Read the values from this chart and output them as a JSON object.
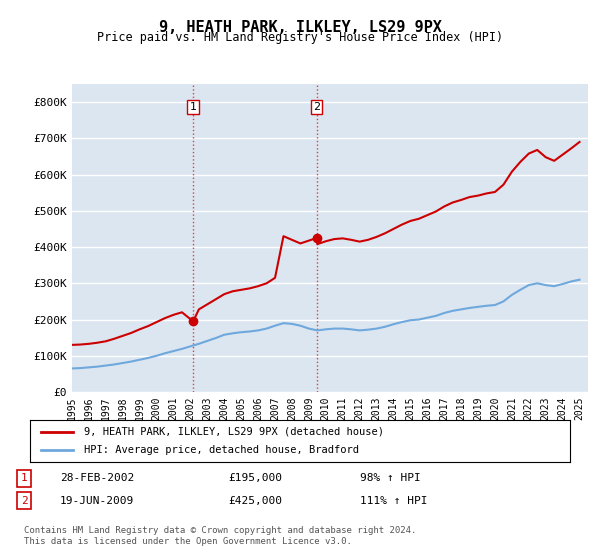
{
  "title": "9, HEATH PARK, ILKLEY, LS29 9PX",
  "subtitle": "Price paid vs. HM Land Registry's House Price Index (HPI)",
  "legend_line1": "9, HEATH PARK, ILKLEY, LS29 9PX (detached house)",
  "legend_line2": "HPI: Average price, detached house, Bradford",
  "footnote": "Contains HM Land Registry data © Crown copyright and database right 2024.\nThis data is licensed under the Open Government Licence v3.0.",
  "sale1_label": "1",
  "sale1_date": "28-FEB-2002",
  "sale1_price": "£195,000",
  "sale1_hpi": "98% ↑ HPI",
  "sale2_label": "2",
  "sale2_date": "19-JUN-2009",
  "sale2_price": "£425,000",
  "sale2_hpi": "111% ↑ HPI",
  "hpi_color": "#6fa8dc",
  "price_color": "#cc0000",
  "dot_color": "#cc0000",
  "background_plot": "#dce6f1",
  "background_fig": "#ffffff",
  "grid_color": "#ffffff",
  "ylim": [
    0,
    850000
  ],
  "yticks": [
    0,
    100000,
    200000,
    300000,
    400000,
    500000,
    600000,
    700000,
    800000
  ],
  "ytick_labels": [
    "£0",
    "£100K",
    "£200K",
    "£300K",
    "£400K",
    "£500K",
    "£600K",
    "£700K",
    "£800K"
  ],
  "sale1_x": 2002.16,
  "sale1_y": 195000,
  "sale2_x": 2009.46,
  "sale2_y": 425000,
  "vline1_x": 2002.16,
  "vline2_x": 2009.46,
  "hpi_data": {
    "x": [
      1995,
      1995.5,
      1996,
      1996.5,
      1997,
      1997.5,
      1998,
      1998.5,
      1999,
      1999.5,
      2000,
      2000.5,
      2001,
      2001.5,
      2002,
      2002.5,
      2003,
      2003.5,
      2004,
      2004.5,
      2005,
      2005.5,
      2006,
      2006.5,
      2007,
      2007.5,
      2008,
      2008.5,
      2009,
      2009.5,
      2010,
      2010.5,
      2011,
      2011.5,
      2012,
      2012.5,
      2013,
      2013.5,
      2014,
      2014.5,
      2015,
      2015.5,
      2016,
      2016.5,
      2017,
      2017.5,
      2018,
      2018.5,
      2019,
      2019.5,
      2020,
      2020.5,
      2021,
      2021.5,
      2022,
      2022.5,
      2023,
      2023.5,
      2024,
      2024.5,
      2025
    ],
    "y": [
      65000,
      66000,
      68000,
      70000,
      73000,
      76000,
      80000,
      84000,
      89000,
      94000,
      100000,
      107000,
      113000,
      119000,
      126000,
      133000,
      141000,
      149000,
      158000,
      162000,
      165000,
      167000,
      170000,
      175000,
      183000,
      190000,
      188000,
      183000,
      175000,
      170000,
      173000,
      175000,
      175000,
      173000,
      170000,
      172000,
      175000,
      180000,
      187000,
      193000,
      198000,
      200000,
      205000,
      210000,
      218000,
      224000,
      228000,
      232000,
      235000,
      238000,
      240000,
      250000,
      268000,
      282000,
      295000,
      300000,
      295000,
      292000,
      298000,
      305000,
      310000
    ]
  },
  "price_data": {
    "x": [
      1995,
      1995.5,
      1996,
      1996.5,
      1997,
      1997.5,
      1998,
      1998.5,
      1999,
      1999.5,
      2000,
      2000.5,
      2001,
      2001.5,
      2002.16,
      2002.5,
      2003,
      2003.5,
      2004,
      2004.5,
      2005,
      2005.5,
      2006,
      2006.5,
      2007,
      2007.5,
      2008,
      2008.5,
      2009.46,
      2009.5,
      2010,
      2010.5,
      2011,
      2011.5,
      2012,
      2012.5,
      2013,
      2013.5,
      2014,
      2014.5,
      2015,
      2015.5,
      2016,
      2016.5,
      2017,
      2017.5,
      2018,
      2018.5,
      2019,
      2019.5,
      2020,
      2020.5,
      2021,
      2021.5,
      2022,
      2022.5,
      2023,
      2023.5,
      2024,
      2024.5,
      2025
    ],
    "y": [
      130000,
      131000,
      133000,
      136000,
      140000,
      147000,
      155000,
      163000,
      173000,
      182000,
      193000,
      204000,
      213000,
      220000,
      195000,
      228000,
      242000,
      256000,
      270000,
      278000,
      282000,
      286000,
      292000,
      300000,
      315000,
      430000,
      420000,
      410000,
      425000,
      408000,
      416000,
      422000,
      424000,
      420000,
      415000,
      420000,
      428000,
      438000,
      450000,
      462000,
      472000,
      478000,
      488000,
      498000,
      512000,
      523000,
      530000,
      538000,
      542000,
      548000,
      552000,
      572000,
      608000,
      635000,
      658000,
      668000,
      648000,
      638000,
      655000,
      672000,
      690000
    ]
  },
  "xlim": [
    1995,
    2025.5
  ],
  "xtick_years": [
    1995,
    1996,
    1997,
    1998,
    1999,
    2000,
    2001,
    2002,
    2003,
    2004,
    2005,
    2006,
    2007,
    2008,
    2009,
    2010,
    2011,
    2012,
    2013,
    2014,
    2015,
    2016,
    2017,
    2018,
    2019,
    2020,
    2021,
    2022,
    2023,
    2024,
    2025
  ]
}
